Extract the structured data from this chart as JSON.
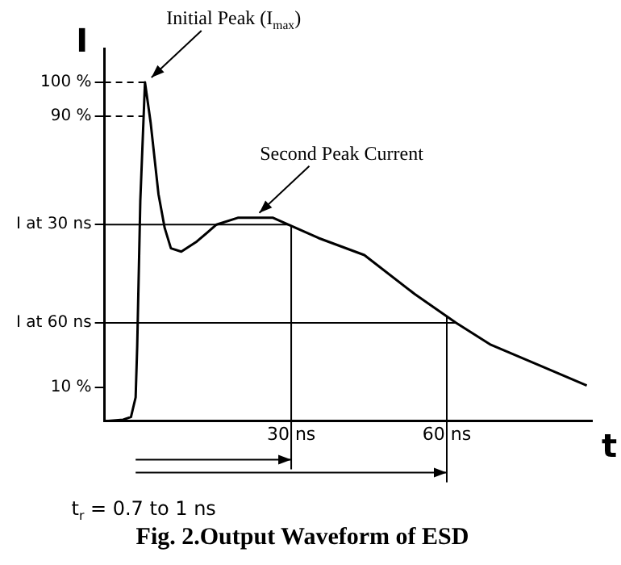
{
  "chart_data": {
    "type": "line",
    "title": "Fig. 2.Output Waveform of ESD",
    "xlabel": "t",
    "ylabel": "I",
    "color": "#000000",
    "x": [
      -5.3,
      -2.4,
      -0.9,
      0,
      0.3,
      0.9,
      1.8,
      2.9,
      4.4,
      5.6,
      6.8,
      8.8,
      11.8,
      15.6,
      19.7,
      22.6,
      26.5,
      29.4,
      35.3,
      44.1,
      53.8,
      61.8,
      68.5,
      78.5,
      87
    ],
    "values": [
      0,
      0.4,
      1.2,
      7,
      22,
      65,
      100,
      88,
      67,
      57,
      51,
      50,
      53,
      58,
      60,
      60,
      60,
      58,
      54,
      49,
      37.5,
      29,
      22.5,
      16,
      10.5
    ],
    "xlim": [
      -6,
      88
    ],
    "ylim": [
      0,
      110
    ],
    "xticks": [
      {
        "value": 30,
        "label": "30 ns"
      },
      {
        "value": 60,
        "label": "60 ns"
      }
    ],
    "yticks": [
      {
        "value": 100,
        "label": "100 %"
      },
      {
        "value": 90,
        "label": "90 %"
      },
      {
        "value": 58,
        "label": "I at 30 ns"
      },
      {
        "value": 29,
        "label": "I at 60 ns"
      },
      {
        "value": 10,
        "label": "10 %"
      }
    ],
    "grid": false,
    "legend": false,
    "marker": "none",
    "line_style": "solid",
    "ref_lines": [
      {
        "axis": "y",
        "value": 100,
        "line_style": "dashed"
      },
      {
        "axis": "y",
        "value": 90,
        "line_style": "dashed"
      },
      {
        "axis": "y",
        "value": 58,
        "line_style": "solid"
      },
      {
        "axis": "y",
        "value": 29,
        "line_style": "solid"
      },
      {
        "axis": "x",
        "value": 30
      },
      {
        "axis": "x",
        "value": 60
      }
    ],
    "annotations": [
      {
        "text": "Initial Peak (I$_{max}$)",
        "x": 1.8,
        "y": 100
      },
      {
        "text": "Second Peak Current",
        "x": 22.6,
        "y": 60
      },
      "t$_{r}$ = 0.7 to 1 ns"
    ]
  }
}
